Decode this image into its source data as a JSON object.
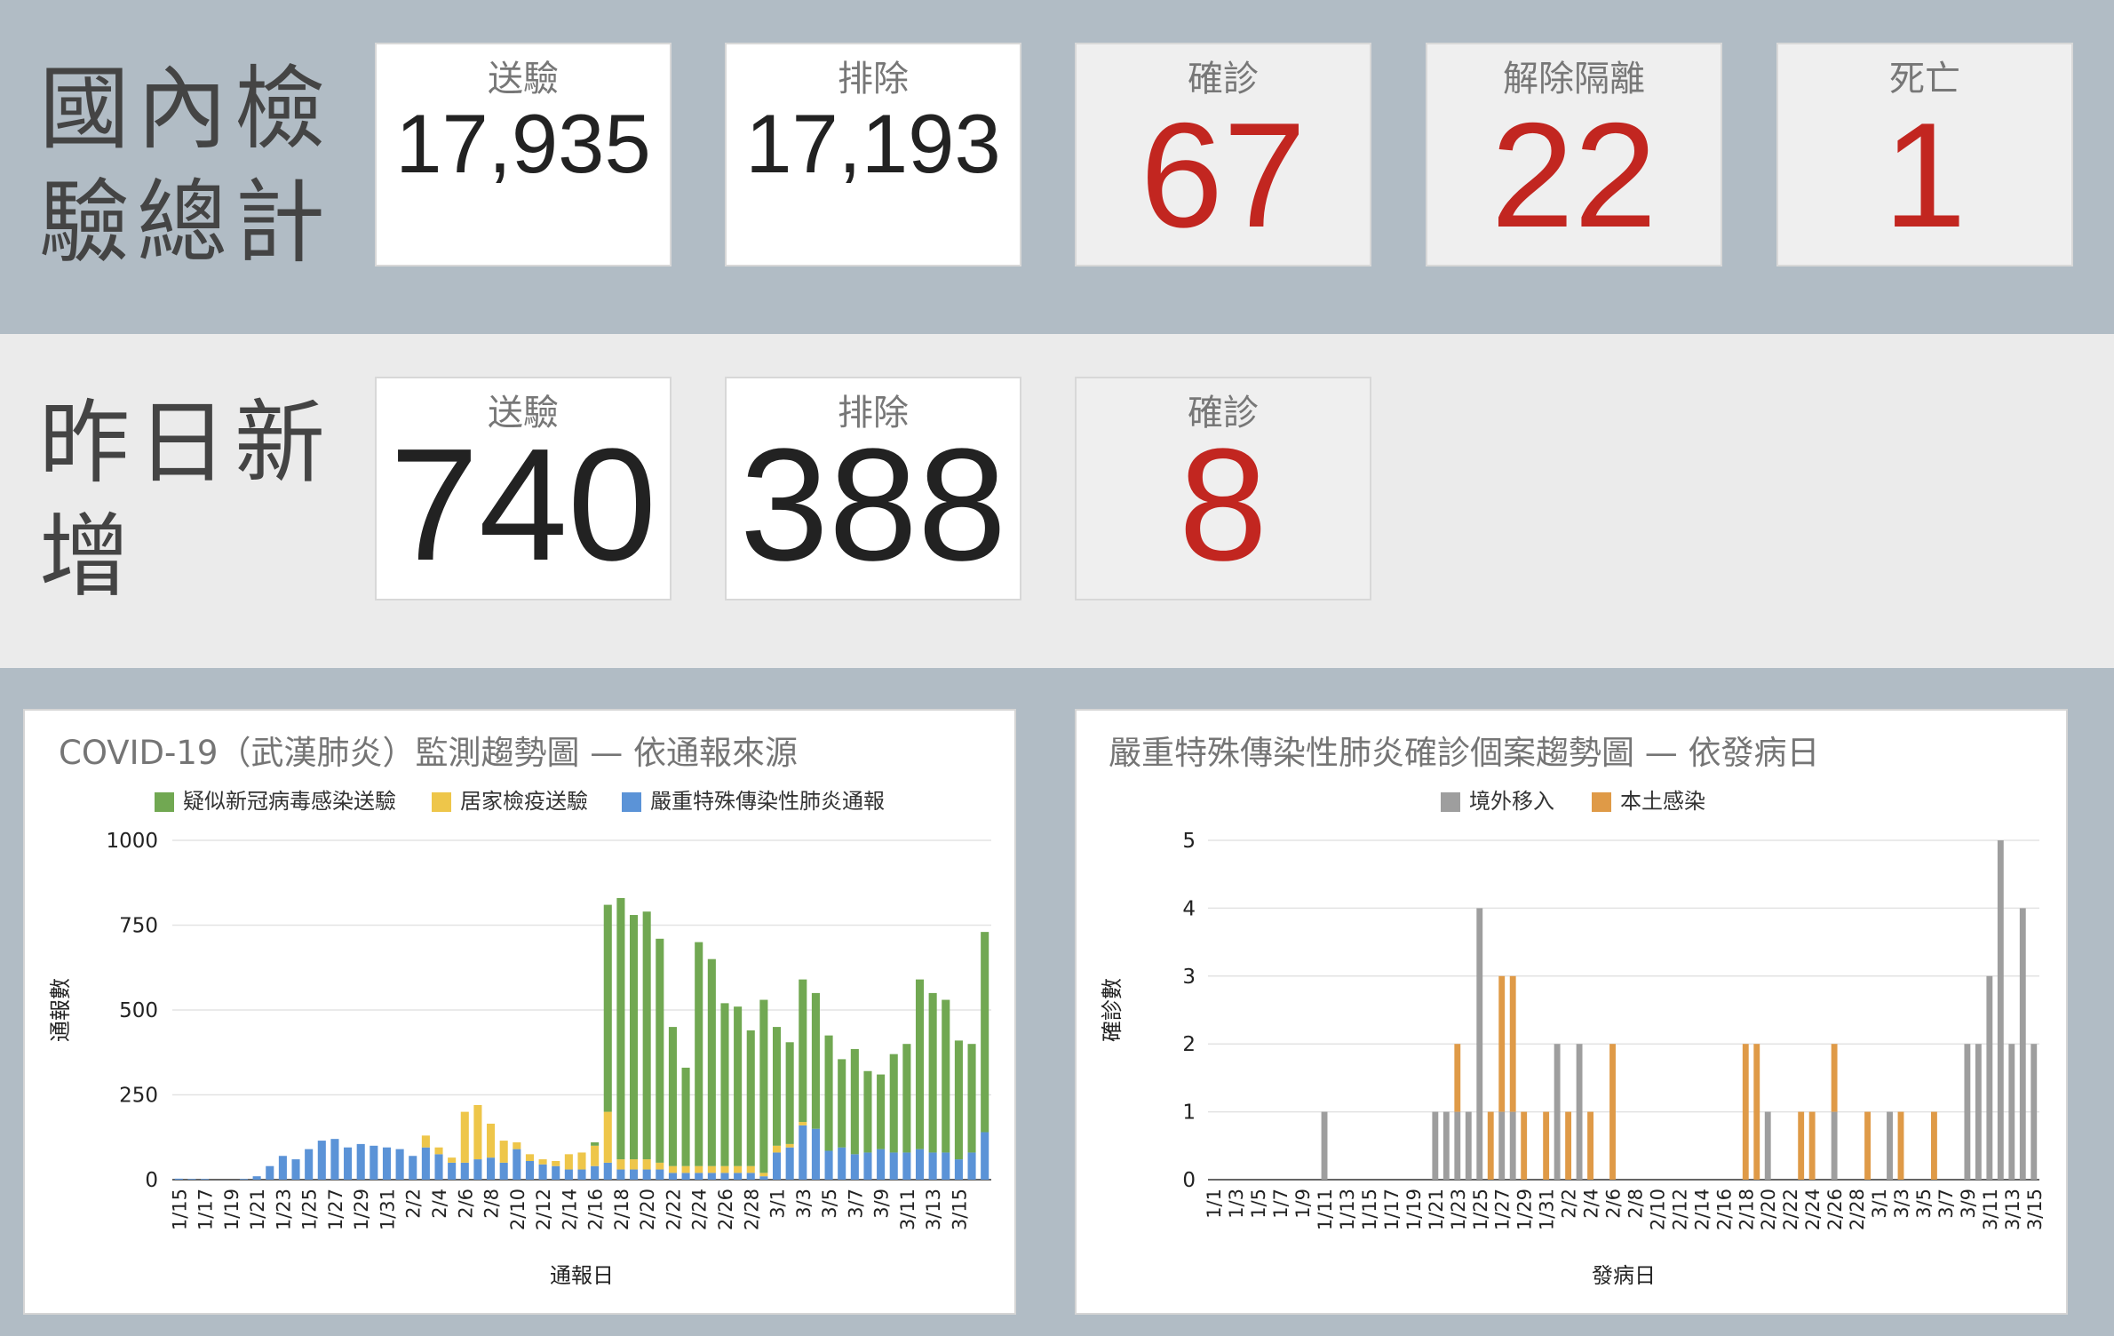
{
  "total": {
    "title_lines": [
      "國內檢",
      "驗總計"
    ],
    "cards": [
      {
        "label": "送驗",
        "value": "17,935",
        "tone": "white",
        "color": "dark"
      },
      {
        "label": "排除",
        "value": "17,193",
        "tone": "white",
        "color": "dark"
      },
      {
        "label": "確診",
        "value": "67",
        "tone": "grey",
        "color": "red"
      },
      {
        "label": "解除隔離",
        "value": "22",
        "tone": "grey",
        "color": "red"
      },
      {
        "label": "死亡",
        "value": "1",
        "tone": "grey",
        "color": "red"
      }
    ]
  },
  "new": {
    "title_lines": [
      "昨日新",
      "增"
    ],
    "cards": [
      {
        "label": "送驗",
        "value": "740",
        "tone": "white",
        "color": "dark"
      },
      {
        "label": "排除",
        "value": "388",
        "tone": "white",
        "color": "dark"
      },
      {
        "label": "確診",
        "value": "8",
        "tone": "grey",
        "color": "red"
      }
    ]
  },
  "colors": {
    "band_dark": "#b1bcc5",
    "band_light": "#ebebeb",
    "accent_red": "#c22620",
    "green": "#71a852",
    "yellow": "#eec64a",
    "blue": "#5b93d7",
    "gray": "#9e9e9e",
    "orange": "#df9a47"
  },
  "chart_data": [
    {
      "type": "bar",
      "stacked": true,
      "title": "COVID-19（武漢肺炎）監測趨勢圖 — 依通報來源",
      "xlabel": "通報日",
      "ylabel": "通報數",
      "ylim": [
        0,
        1000
      ],
      "yticks": [
        0,
        250,
        500,
        750,
        1000
      ],
      "legend_position": "top",
      "grid": true,
      "categories": [
        "1/15",
        "1/16",
        "1/17",
        "1/18",
        "1/19",
        "1/20",
        "1/21",
        "1/22",
        "1/23",
        "1/24",
        "1/25",
        "1/26",
        "1/27",
        "1/28",
        "1/29",
        "1/30",
        "1/31",
        "2/1",
        "2/2",
        "2/3",
        "2/4",
        "2/5",
        "2/6",
        "2/7",
        "2/8",
        "2/9",
        "2/10",
        "2/11",
        "2/12",
        "2/13",
        "2/14",
        "2/15",
        "2/16",
        "2/17",
        "2/18",
        "2/19",
        "2/20",
        "2/21",
        "2/22",
        "2/23",
        "2/24",
        "2/25",
        "2/26",
        "2/27",
        "2/28",
        "2/29",
        "3/1",
        "3/2",
        "3/3",
        "3/4",
        "3/5",
        "3/6",
        "3/7",
        "3/8",
        "3/9",
        "3/10",
        "3/11",
        "3/12",
        "3/13",
        "3/14",
        "3/15",
        "3/16",
        "3/17"
      ],
      "xtick_labels": [
        "1/15",
        "1/17",
        "1/19",
        "1/21",
        "1/23",
        "1/25",
        "1/27",
        "1/29",
        "1/31",
        "2/2",
        "2/4",
        "2/6",
        "2/8",
        "2/10",
        "2/12",
        "2/14",
        "2/16",
        "2/18",
        "2/20",
        "2/22",
        "2/24",
        "2/26",
        "2/28",
        "3/1",
        "3/3",
        "3/5",
        "3/7",
        "3/9",
        "3/11",
        "3/13",
        "3/15"
      ],
      "series": [
        {
          "name": "嚴重特殊傳染性肺炎通報",
          "color": "#5b93d7",
          "values": [
            3,
            2,
            2,
            0,
            0,
            2,
            10,
            40,
            70,
            60,
            90,
            115,
            120,
            95,
            105,
            100,
            95,
            90,
            70,
            95,
            75,
            50,
            50,
            60,
            65,
            50,
            90,
            55,
            45,
            40,
            30,
            30,
            40,
            50,
            30,
            30,
            30,
            30,
            20,
            20,
            20,
            20,
            20,
            20,
            20,
            10,
            80,
            95,
            160,
            150,
            85,
            95,
            75,
            80,
            90,
            80,
            80,
            90,
            80,
            80,
            60,
            80,
            140
          ]
        },
        {
          "name": "居家檢疫送驗",
          "color": "#eec64a",
          "values": [
            0,
            0,
            0,
            0,
            0,
            0,
            0,
            0,
            0,
            0,
            0,
            0,
            0,
            0,
            0,
            0,
            0,
            0,
            0,
            35,
            20,
            15,
            150,
            160,
            100,
            65,
            20,
            20,
            15,
            15,
            45,
            50,
            60,
            150,
            30,
            30,
            30,
            20,
            20,
            20,
            20,
            20,
            20,
            20,
            20,
            10,
            20,
            10,
            10,
            0,
            0,
            0,
            0,
            0,
            0,
            0,
            0,
            0,
            0,
            0,
            0,
            0,
            0
          ]
        },
        {
          "name": "疑似新冠病毒感染送驗",
          "color": "#71a852",
          "values": [
            0,
            0,
            0,
            0,
            0,
            0,
            0,
            0,
            0,
            0,
            0,
            0,
            0,
            0,
            0,
            0,
            0,
            0,
            0,
            0,
            0,
            0,
            0,
            0,
            0,
            0,
            0,
            0,
            0,
            0,
            0,
            0,
            10,
            610,
            770,
            720,
            730,
            660,
            410,
            290,
            660,
            610,
            480,
            470,
            400,
            510,
            350,
            300,
            420,
            400,
            340,
            260,
            310,
            240,
            220,
            290,
            320,
            500,
            470,
            450,
            350,
            320,
            590
          ]
        }
      ]
    },
    {
      "type": "bar",
      "stacked": true,
      "title": "嚴重特殊傳染性肺炎確診個案趨勢圖 — 依發病日",
      "xlabel": "發病日",
      "ylabel": "確診數",
      "ylim": [
        0,
        5
      ],
      "yticks": [
        0,
        1,
        2,
        3,
        4,
        5
      ],
      "legend_position": "top",
      "grid": true,
      "categories": [
        "1/1",
        "1/2",
        "1/3",
        "1/4",
        "1/5",
        "1/6",
        "1/7",
        "1/8",
        "1/9",
        "1/10",
        "1/11",
        "1/12",
        "1/13",
        "1/14",
        "1/15",
        "1/16",
        "1/17",
        "1/18",
        "1/19",
        "1/20",
        "1/21",
        "1/22",
        "1/23",
        "1/24",
        "1/25",
        "1/26",
        "1/27",
        "1/28",
        "1/29",
        "1/30",
        "1/31",
        "2/1",
        "2/2",
        "2/3",
        "2/4",
        "2/5",
        "2/6",
        "2/7",
        "2/8",
        "2/9",
        "2/10",
        "2/11",
        "2/12",
        "2/13",
        "2/14",
        "2/15",
        "2/16",
        "2/17",
        "2/18",
        "2/19",
        "2/20",
        "2/21",
        "2/22",
        "2/23",
        "2/24",
        "2/25",
        "2/26",
        "2/27",
        "2/28",
        "2/29",
        "3/1",
        "3/2",
        "3/3",
        "3/4",
        "3/5",
        "3/6",
        "3/7",
        "3/8",
        "3/9",
        "3/10",
        "3/11",
        "3/12",
        "3/13",
        "3/14",
        "3/15"
      ],
      "xtick_labels": [
        "1/1",
        "1/3",
        "1/5",
        "1/7",
        "1/9",
        "1/11",
        "1/13",
        "1/15",
        "1/17",
        "1/19",
        "1/21",
        "1/23",
        "1/25",
        "1/27",
        "1/29",
        "1/31",
        "2/2",
        "2/4",
        "2/6",
        "2/8",
        "2/10",
        "2/12",
        "2/14",
        "2/16",
        "2/18",
        "2/20",
        "2/22",
        "2/24",
        "2/26",
        "2/28",
        "3/1",
        "3/3",
        "3/5",
        "3/7",
        "3/9",
        "3/11",
        "3/13",
        "3/15"
      ],
      "series": [
        {
          "name": "境外移入",
          "color": "#9e9e9e",
          "values": [
            0,
            0,
            0,
            0,
            0,
            0,
            0,
            0,
            0,
            0,
            1,
            0,
            0,
            0,
            0,
            0,
            0,
            0,
            0,
            0,
            1,
            1,
            1,
            1,
            4,
            0,
            1,
            1,
            0,
            0,
            0,
            2,
            0,
            2,
            0,
            0,
            0,
            0,
            0,
            0,
            0,
            0,
            0,
            0,
            0,
            0,
            0,
            0,
            0,
            0,
            1,
            0,
            0,
            0,
            0,
            0,
            1,
            0,
            0,
            0,
            0,
            1,
            0,
            0,
            0,
            0,
            0,
            0,
            2,
            2,
            3,
            5,
            2,
            4,
            2
          ]
        },
        {
          "name": "本土感染",
          "color": "#df9a47",
          "values": [
            0,
            0,
            0,
            0,
            0,
            0,
            0,
            0,
            0,
            0,
            0,
            0,
            0,
            0,
            0,
            0,
            0,
            0,
            0,
            0,
            0,
            0,
            1,
            0,
            0,
            1,
            2,
            2,
            1,
            0,
            1,
            0,
            1,
            0,
            1,
            0,
            2,
            0,
            0,
            0,
            0,
            0,
            0,
            0,
            0,
            0,
            0,
            0,
            2,
            2,
            0,
            0,
            0,
            1,
            1,
            0,
            1,
            0,
            0,
            1,
            0,
            0,
            1,
            0,
            0,
            1,
            0,
            0,
            0,
            0,
            0,
            0,
            0,
            0,
            0
          ]
        }
      ]
    }
  ]
}
